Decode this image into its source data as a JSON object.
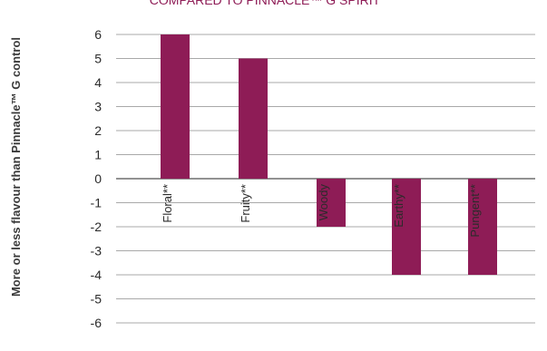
{
  "chart_data": {
    "type": "bar",
    "title": "COMPARED TO PINNACLE™ G SPIRIT",
    "ylabel": "More or less flavour than Pinnacle™ G control",
    "xlabel": "",
    "categories": [
      "Floral**",
      "Fruity**",
      "Woody",
      "Earthy**",
      "Pungent**"
    ],
    "values": [
      6,
      5,
      -2,
      -4,
      -4
    ],
    "ylim": [
      -6,
      6
    ],
    "yticks": [
      6,
      5,
      4,
      3,
      2,
      1,
      0,
      -1,
      -2,
      -3,
      -4,
      -5,
      -6
    ],
    "grid": true,
    "bar_color": "#8e1c56",
    "grid_color": "#a9a9a9"
  }
}
